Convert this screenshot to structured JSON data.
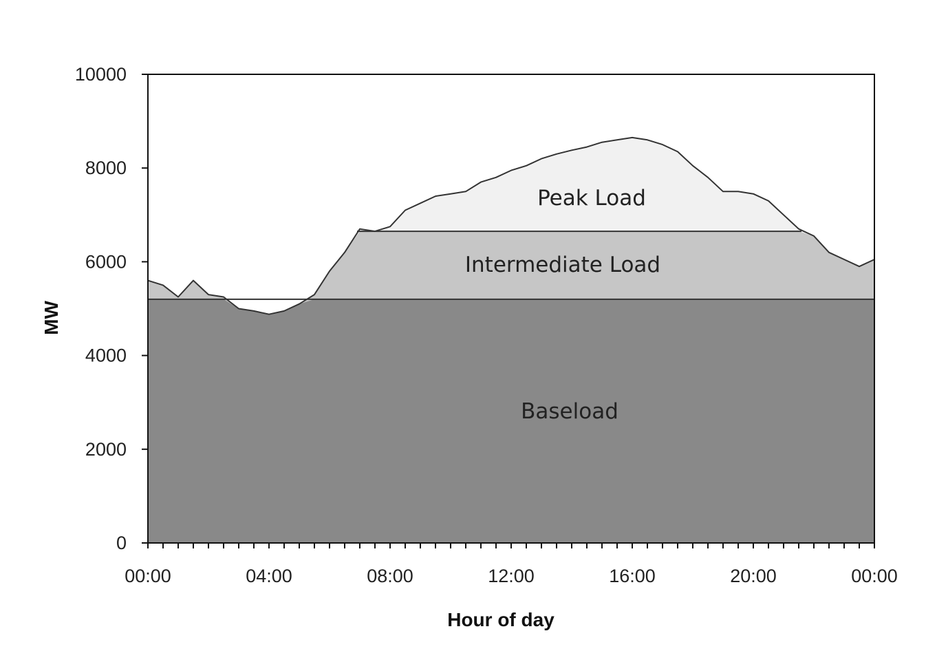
{
  "chart_data": {
    "type": "area",
    "title": "",
    "xlabel": "Hour of day",
    "ylabel": "MW",
    "ylim": [
      0,
      10000
    ],
    "xlim": [
      0,
      24
    ],
    "y_ticks": [
      0,
      2000,
      4000,
      6000,
      8000,
      10000
    ],
    "x_tick_hours": [
      0,
      4,
      8,
      12,
      16,
      20,
      24
    ],
    "x_tick_labels": [
      "00:00",
      "04:00",
      "08:00",
      "12:00",
      "16:00",
      "20:00",
      "00:00"
    ],
    "minor_tick_interval_hours": 0.5,
    "grid": false,
    "colors": {
      "baseload": "#898989",
      "intermediate": "#c6c6c6",
      "peak": "#f1f1f1",
      "line": "#333333"
    },
    "levels": {
      "baseload": 5200,
      "intermediate": 6650
    },
    "demand_curve": {
      "hours": [
        0,
        0.5,
        1,
        1.5,
        2,
        2.5,
        3,
        3.5,
        4,
        4.5,
        5,
        5.5,
        6,
        6.5,
        7,
        7.5,
        8,
        8.5,
        9,
        9.5,
        10,
        10.5,
        11,
        11.5,
        12,
        12.5,
        13,
        13.5,
        14,
        14.5,
        15,
        15.5,
        16,
        16.5,
        17,
        17.5,
        18,
        18.5,
        19,
        19.5,
        20,
        20.5,
        21,
        21.5,
        22,
        22.5,
        23,
        23.5,
        24
      ],
      "mw": [
        5600,
        5500,
        5250,
        5600,
        5300,
        5250,
        5000,
        4950,
        4880,
        4950,
        5100,
        5300,
        5800,
        6200,
        6700,
        6650,
        6750,
        7100,
        7250,
        7400,
        7450,
        7500,
        7700,
        7800,
        7950,
        8050,
        8200,
        8300,
        8380,
        8450,
        8550,
        8600,
        8650,
        8600,
        8500,
        8350,
        8050,
        7800,
        7500,
        7500,
        7450,
        7300,
        7000,
        6700,
        6550,
        6200,
        6050,
        5900,
        6050
      ]
    },
    "series": [
      {
        "name": "Baseload"
      },
      {
        "name": "Intermediate Load"
      },
      {
        "name": "Peak Load"
      }
    ]
  }
}
